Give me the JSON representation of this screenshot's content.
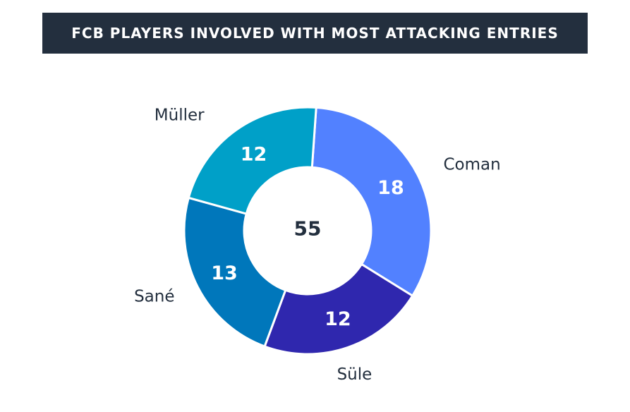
{
  "chart_data": {
    "type": "pie",
    "title": "FCB PLAYERS INVOLVED WITH MOST ATTACKING ENTRIES",
    "total": "55",
    "slices": [
      {
        "label": "Coman",
        "value": 18,
        "color": "#5281ff"
      },
      {
        "label": "Süle",
        "value": 12,
        "color": "#2f27ae"
      },
      {
        "label": "Sané",
        "value": 13,
        "color": "#0077bb"
      },
      {
        "label": "Müller",
        "value": 12,
        "color": "#00a0c8"
      }
    ],
    "colors": {
      "title_background": "#232f3e",
      "title_text": "#ffffff",
      "label_text": "#232f3e"
    }
  }
}
